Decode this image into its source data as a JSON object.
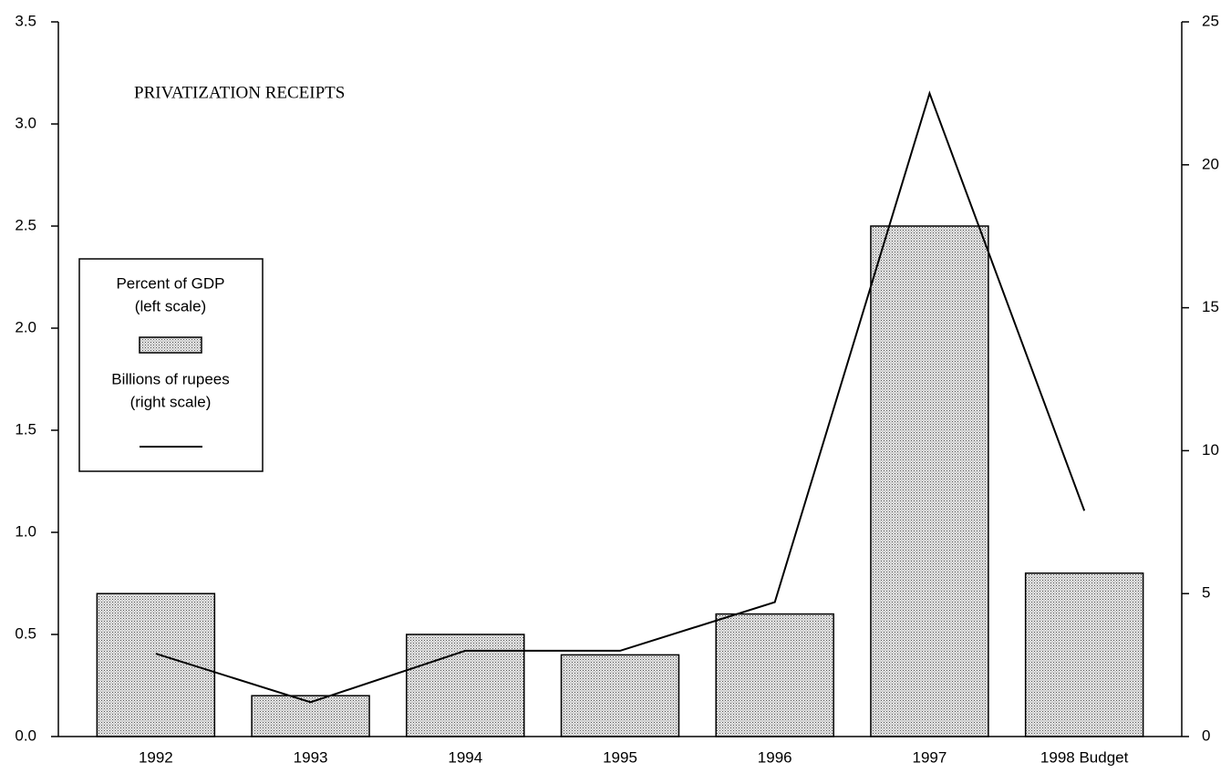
{
  "chart_data": {
    "type": "bar_line",
    "title": "PRIVATIZATION RECEIPTS",
    "categories": [
      "1992",
      "1993",
      "1994",
      "1995",
      "1996",
      "1997",
      "1998 Budget"
    ],
    "series": [
      {
        "name": "Percent of GDP",
        "scale_label": "(left scale)",
        "color": "#bdbdbd",
        "type": "bar",
        "values": [
          0.7,
          0.2,
          0.5,
          0.4,
          0.6,
          2.5,
          0.8
        ]
      },
      {
        "name": "Billions of rupees",
        "scale_label": "(right scale)",
        "color": "#000000",
        "type": "line",
        "axis": "y2",
        "values": [
          2.9,
          1.2,
          3.0,
          3.0,
          4.7,
          22.5,
          7.9
        ]
      }
    ],
    "ylim": [
      0,
      3.5
    ],
    "yticks": [
      {
        "value": 0,
        "label": "0.0"
      },
      {
        "value": 0.5,
        "label": "0.5"
      },
      {
        "value": 1,
        "label": "1.0"
      },
      {
        "value": 1.5,
        "label": "1.5"
      },
      {
        "value": 2,
        "label": "2.0"
      },
      {
        "value": 2.5,
        "label": "2.5"
      },
      {
        "value": 3,
        "label": "3.0"
      },
      {
        "value": 3.5,
        "label": "3.5"
      }
    ],
    "y2lim": [
      0,
      25
    ],
    "y2ticks": [
      0,
      5,
      10,
      15,
      20,
      25
    ],
    "grid": false
  }
}
